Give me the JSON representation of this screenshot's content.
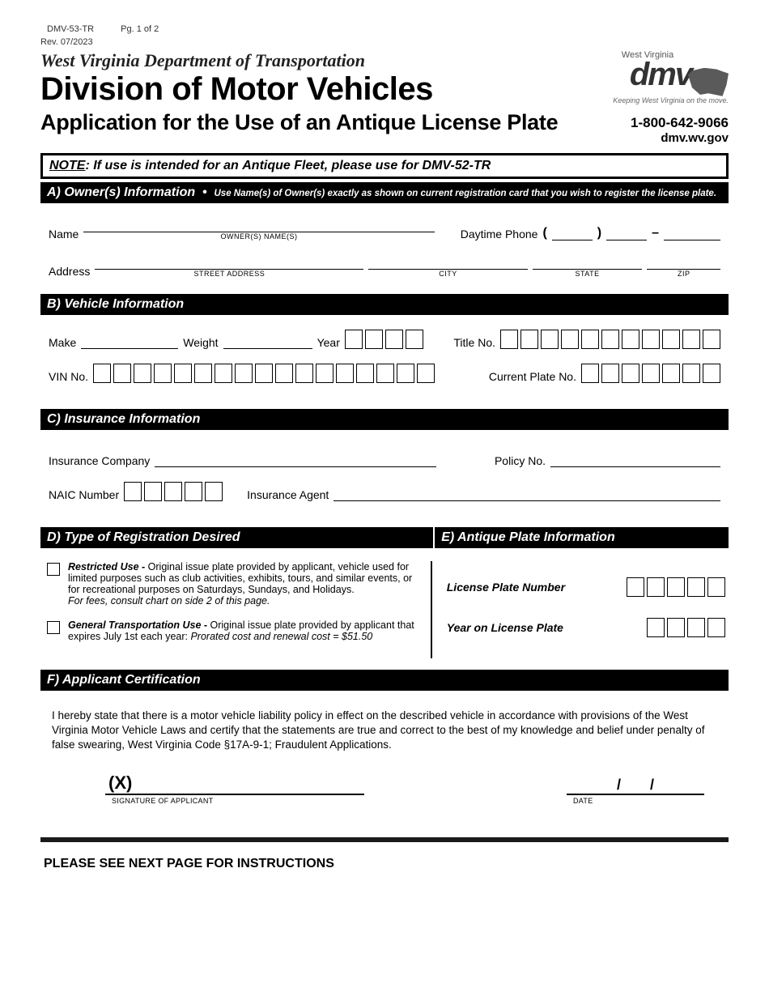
{
  "meta": {
    "form_no": "DMV-53-TR",
    "page": "Pg. 1 of 2",
    "rev": "Rev. 07/2023"
  },
  "header": {
    "dept": "West Virginia Department of Transportation",
    "division": "Division of Motor Vehicles",
    "title": "Application for the Use of an Antique License Plate",
    "phone": "1-800-642-9066",
    "url": "dmv.wv.gov",
    "logo": {
      "state_small": "West Virginia",
      "main": "dmv",
      "tag": "Keeping West Virginia on the move."
    }
  },
  "note": {
    "label": "NOTE",
    "text_a": ":  If use is intended for an ",
    "bold": "Antique Fleet",
    "text_b": ", please use for DMV-52-TR"
  },
  "sectA": {
    "title": "A) Owner(s) Information",
    "sep": "•",
    "sub": "Use Name(s) of Owner(s) exactly as shown on current registration card that you wish to register the license plate.",
    "name_lbl": "Name",
    "name_sub": "OWNER(S) NAME(S)",
    "phone_lbl": "Daytime Phone",
    "phone_dash": "–",
    "addr_lbl": "Address",
    "addr_sub_street": "STREET ADDRESS",
    "addr_sub_city": "CITY",
    "addr_sub_state": "STATE",
    "addr_sub_zip": "ZIP"
  },
  "sectB": {
    "title": "B) Vehicle Information",
    "make": "Make",
    "weight": "Weight",
    "year": "Year",
    "title_no": "Title No.",
    "vin": "VIN No.",
    "cur_plate": "Current Plate No.",
    "year_boxes": 4,
    "title_boxes": 11,
    "vin_boxes": 17,
    "plate_boxes": 7
  },
  "sectC": {
    "title": "C) Insurance Information",
    "company": "Insurance Company",
    "policy": "Policy No.",
    "naic": "NAIC Number",
    "naic_boxes": 5,
    "agent": "Insurance Agent"
  },
  "sectD": {
    "title": "D) Type of Registration Desired",
    "opt1_head": "Restricted Use - ",
    "opt1_body": "Original issue plate provided by applicant, vehicle used for limited purposes such as club activities, exhibits, tours, and similar events, or for recreational purposes on Saturdays, Sundays, and Holidays.",
    "opt1_note": "For fees, consult chart on side 2 of this page.",
    "opt2_head": "General Transportation Use - ",
    "opt2_body": "Original issue plate provided by applicant that expires July 1st each year: ",
    "opt2_note": "Prorated cost and renewal cost = $51.50"
  },
  "sectE": {
    "title": "E) Antique Plate Information",
    "plate_lbl": "License Plate Number",
    "plate_boxes": 5,
    "year_lbl": "Year on License Plate",
    "year_boxes": 4
  },
  "sectF": {
    "title": "F) Applicant Certification",
    "text": "I hereby state that there is a motor vehicle liability policy in effect on the described vehicle in accordance with provisions of the West Virginia Motor Vehicle Laws and certify that the statements are true and correct to the best of my knowledge and belief under penalty of false swearing, West Virginia Code §17A-9-1; Fraudulent Applications.",
    "x": "(X)",
    "sig_lbl": "SIGNATURE OF APPLICANT",
    "slash": "/",
    "date_lbl": "DATE"
  },
  "footer": "PLEASE SEE NEXT PAGE FOR INSTRUCTIONS"
}
